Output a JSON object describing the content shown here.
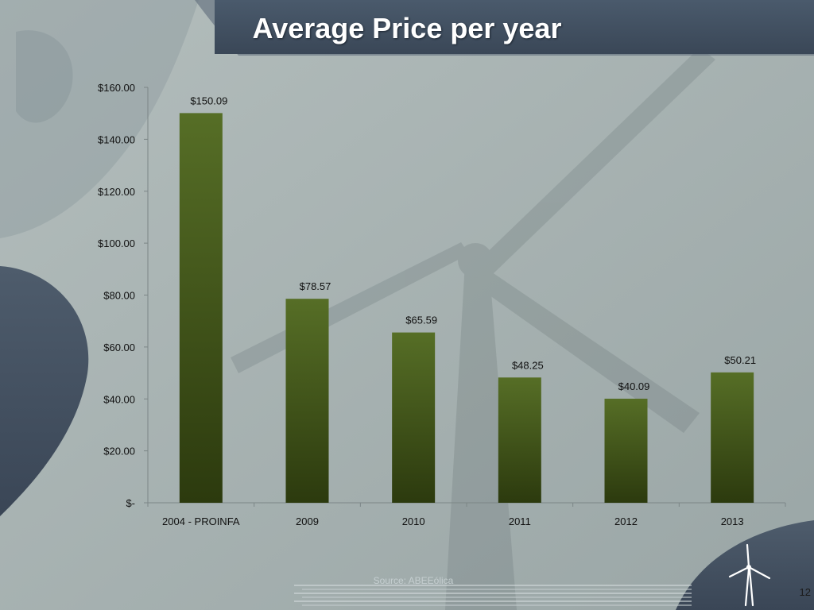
{
  "slide": {
    "title": "Average Price per year",
    "source": "Source: ABEEólica",
    "page_number": "12"
  },
  "colors": {
    "background": "#a9b4b3",
    "title_bar": "#3f4d5e",
    "bar_top": "#566e26",
    "bar_bottom": "#2c3a0e",
    "axis": "#7c8687",
    "text": "#111111"
  },
  "icons": {
    "logo": "wind-turbine-icon"
  },
  "chart_data": {
    "type": "bar",
    "title": "",
    "xlabel": "",
    "ylabel": "",
    "categories": [
      "2004 - PROINFA",
      "2009",
      "2010",
      "2011",
      "2012",
      "2013"
    ],
    "values": [
      150.09,
      78.57,
      65.59,
      48.25,
      40.09,
      50.21
    ],
    "data_labels": [
      "$150.09",
      "$78.57",
      "$65.59",
      "$48.25",
      "$40.09",
      "$50.21"
    ],
    "ylim": [
      0,
      160
    ],
    "yticks": [
      0,
      20,
      40,
      60,
      80,
      100,
      120,
      140,
      160
    ],
    "ytick_labels": [
      "$-",
      "$20.00",
      "$40.00",
      "$60.00",
      "$80.00",
      "$100.00",
      "$120.00",
      "$140.00",
      "$160.00"
    ],
    "grid": false,
    "legend": "none"
  }
}
